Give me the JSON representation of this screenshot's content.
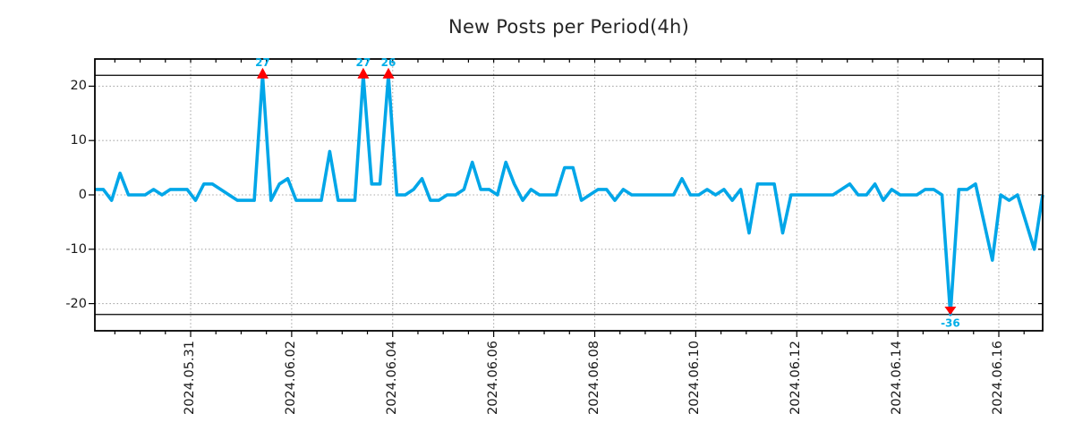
{
  "title": "New Posts per Period(4h)",
  "chart_data": {
    "type": "line",
    "title": "New Posts per Period(4h)",
    "period": "4h",
    "line_color": "#00a6e8",
    "annotation_text_color": "#00aee8",
    "marker_color": "#ff0000",
    "grid_color": "#a8a8a8",
    "axis_color": "#000000",
    "grid": true,
    "ylim": [
      -25,
      25
    ],
    "clip_value": 22,
    "y_ticks": [
      20,
      10,
      0,
      -10,
      -20
    ],
    "x_tick_labels": [
      "2024.05.31",
      "2024.06.02",
      "2024.06.04",
      "2024.06.06",
      "2024.06.08",
      "2024.06.10",
      "2024.06.12",
      "2024.06.14",
      "2024.06.16"
    ],
    "x_minor_tick_hours": 12,
    "values": [
      1,
      1,
      -1,
      4,
      0,
      0,
      0,
      1,
      0,
      1,
      1,
      1,
      -1,
      2,
      2,
      1,
      0,
      -1,
      -1,
      -1,
      27,
      -1,
      2,
      3,
      -1,
      -1,
      -1,
      -1,
      8,
      -1,
      -1,
      -1,
      27,
      2,
      2,
      26,
      0,
      0,
      1,
      3,
      -1,
      -1,
      0,
      0,
      1,
      6,
      1,
      1,
      0,
      6,
      2,
      -1,
      1,
      0,
      0,
      0,
      5,
      5,
      -1,
      0,
      1,
      1,
      -1,
      1,
      0,
      0,
      0,
      0,
      0,
      0,
      3,
      0,
      0,
      1,
      0,
      1,
      -1,
      1,
      -7,
      2,
      2,
      2,
      -7,
      0,
      0,
      0,
      0,
      0,
      0,
      1,
      2,
      0,
      0,
      2,
      -1,
      1,
      0,
      0,
      0,
      1,
      1,
      0,
      -36,
      1,
      1,
      2,
      -5,
      -12,
      0,
      -1,
      0,
      -5,
      -10,
      0
    ],
    "annotations": [
      {
        "index": 20,
        "label": "27",
        "value": 27,
        "direction": "up"
      },
      {
        "index": 32,
        "label": "27",
        "value": 27,
        "direction": "up"
      },
      {
        "index": 35,
        "label": "26",
        "value": 26,
        "direction": "up"
      },
      {
        "index": 102,
        "label": "-36",
        "value": -36,
        "direction": "down"
      }
    ]
  }
}
